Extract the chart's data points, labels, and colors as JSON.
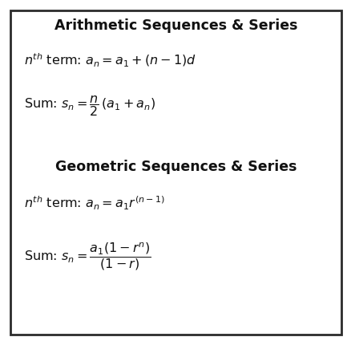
{
  "background_color": "#ffffff",
  "border_color": "#2b2b2b",
  "title1": "Arithmetic Sequences & Series",
  "title2": "Geometric Sequences & Series",
  "text_color": "#111111",
  "figsize": [
    4.39,
    4.3
  ],
  "dpi": 100,
  "border_lw": 2.0,
  "title_fontsize": 12.5,
  "body_fontsize": 11.5
}
